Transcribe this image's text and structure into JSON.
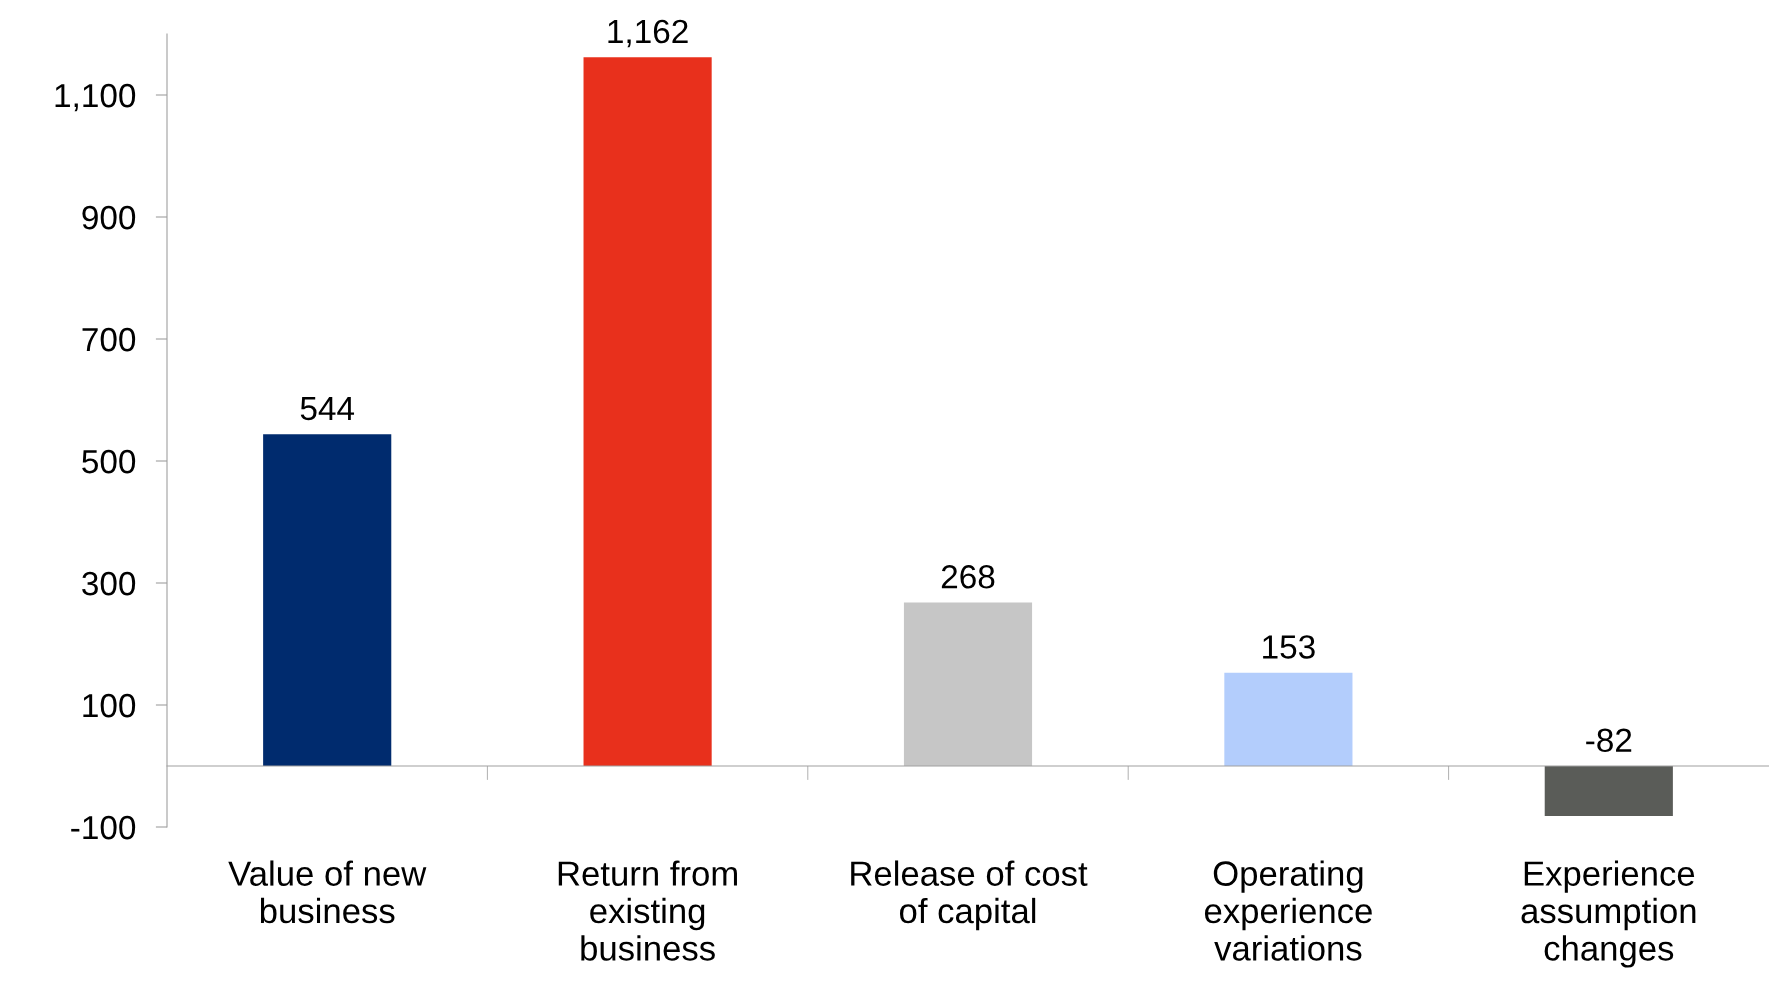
{
  "chart_data": {
    "type": "bar",
    "categories": [
      "Value of new\nbusiness",
      "Return from\nexisting\nbusiness",
      "Release of cost\nof capital",
      "Operating\nexperience\nvariations",
      "Experience\nassumption\nchanges"
    ],
    "values": [
      544,
      1162,
      268,
      153,
      -82
    ],
    "colors": [
      "#002b6e",
      "#e8301c",
      "#c6c6c6",
      "#b3cdfc",
      "#5a5c58"
    ],
    "value_labels": [
      "544",
      "1,162",
      "268",
      "153",
      "-82"
    ],
    "ylim": [
      -100,
      1200
    ],
    "yticks": [
      -100,
      100,
      300,
      500,
      700,
      900,
      {
        "value": 1100,
        "label": "1,100"
      }
    ],
    "grid": false
  }
}
